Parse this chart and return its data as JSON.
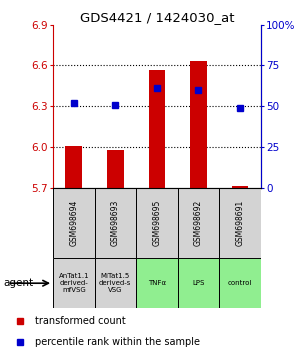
{
  "title": "GDS4421 / 1424030_at",
  "samples": [
    "GSM698694",
    "GSM698693",
    "GSM698695",
    "GSM698692",
    "GSM698691"
  ],
  "agents": [
    "AnTat1.1\nderived-\nmfVSG",
    "MiTat1.5\nderived-s\nVSG",
    "TNFα",
    "LPS",
    "control"
  ],
  "agent_colors": [
    "#d3d3d3",
    "#d3d3d3",
    "#90ee90",
    "#90ee90",
    "#90ee90"
  ],
  "red_values": [
    6.01,
    5.975,
    6.565,
    6.635,
    5.71
  ],
  "blue_values_pct": [
    52,
    51,
    61,
    60,
    49
  ],
  "ylim": [
    5.7,
    6.9
  ],
  "yticks_left": [
    5.7,
    6.0,
    6.3,
    6.6,
    6.9
  ],
  "yticks_right": [
    0,
    25,
    50,
    75,
    100
  ],
  "ylabel_left_color": "#cc0000",
  "ylabel_right_color": "#0000cc",
  "bar_color": "#cc0000",
  "dot_color": "#0000cc",
  "bar_width": 0.4,
  "background_color": "#ffffff"
}
